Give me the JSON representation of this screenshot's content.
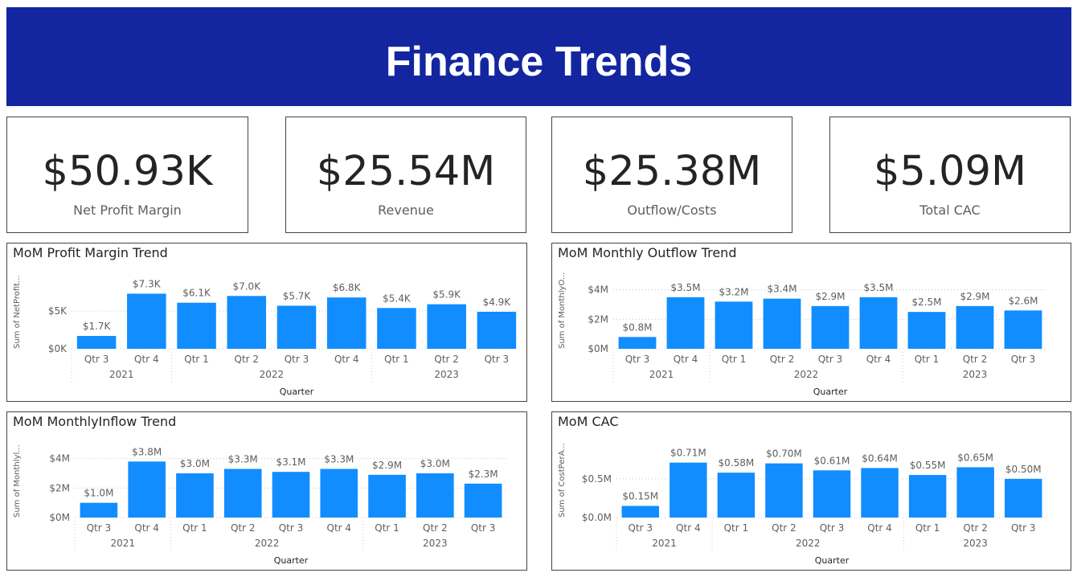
{
  "header": {
    "title": "Finance Trends"
  },
  "kpis": [
    {
      "value": "$50.93K",
      "label": "Net Profit Margin"
    },
    {
      "value": "$25.54M",
      "label": "Revenue"
    },
    {
      "value": "$25.38M",
      "label": "Outflow/Costs"
    },
    {
      "value": "$5.09M",
      "label": "Total CAC"
    }
  ],
  "colors": {
    "bar": "#118dff",
    "header": "#1326a0"
  },
  "chart_data": [
    {
      "type": "bar",
      "title": "MoM Profit Margin Trend",
      "ylabel": "Sum of NetProfit...",
      "xlabel": "Quarter",
      "categories": [
        "Qtr 3",
        "Qtr 4",
        "Qtr 1",
        "Qtr 2",
        "Qtr 3",
        "Qtr 4",
        "Qtr 1",
        "Qtr 2",
        "Qtr 3"
      ],
      "years": [
        {
          "label": "2021",
          "span": 2
        },
        {
          "label": "2022",
          "span": 4
        },
        {
          "label": "2023",
          "span": 3
        }
      ],
      "values": [
        1.7,
        7.3,
        6.1,
        7.0,
        5.7,
        6.8,
        5.4,
        5.9,
        4.9
      ],
      "data_labels": [
        "$1.7K",
        "$7.3K",
        "$6.1K",
        "$7.0K",
        "$5.7K",
        "$6.8K",
        "$5.4K",
        "$5.9K",
        "$4.9K"
      ],
      "yticks": [
        0,
        5
      ],
      "ytick_labels": [
        "$0K",
        "$5K"
      ],
      "ylim": [
        0,
        8.2
      ]
    },
    {
      "type": "bar",
      "title": "MoM Monthly Outflow Trend",
      "ylabel": "Sum of MonthlyO...",
      "xlabel": "Quarter",
      "categories": [
        "Qtr 3",
        "Qtr 4",
        "Qtr 1",
        "Qtr 2",
        "Qtr 3",
        "Qtr 4",
        "Qtr 1",
        "Qtr 2",
        "Qtr 3"
      ],
      "years": [
        {
          "label": "2021",
          "span": 2
        },
        {
          "label": "2022",
          "span": 4
        },
        {
          "label": "2023",
          "span": 3
        }
      ],
      "values": [
        0.8,
        3.5,
        3.2,
        3.4,
        2.9,
        3.5,
        2.5,
        2.9,
        2.6
      ],
      "data_labels": [
        "$0.8M",
        "$3.5M",
        "$3.2M",
        "$3.4M",
        "$2.9M",
        "$3.5M",
        "$2.5M",
        "$2.9M",
        "$2.6M"
      ],
      "yticks": [
        0,
        2,
        4
      ],
      "ytick_labels": [
        "$0M",
        "$2M",
        "$4M"
      ],
      "ylim": [
        0,
        4.2
      ]
    },
    {
      "type": "bar",
      "title": "MoM MonthlyInflow Trend",
      "ylabel": "Sum of Monthlyl...",
      "xlabel": "Quarter",
      "categories": [
        "Qtr 3",
        "Qtr 4",
        "Qtr 1",
        "Qtr 2",
        "Qtr 3",
        "Qtr 4",
        "Qtr 1",
        "Qtr 2",
        "Qtr 3"
      ],
      "years": [
        {
          "label": "2021",
          "span": 2
        },
        {
          "label": "2022",
          "span": 4
        },
        {
          "label": "2023",
          "span": 3
        }
      ],
      "values": [
        1.0,
        3.8,
        3.0,
        3.3,
        3.1,
        3.3,
        2.9,
        3.0,
        2.3
      ],
      "data_labels": [
        "$1.0M",
        "$3.8M",
        "$3.0M",
        "$3.3M",
        "$3.1M",
        "$3.3M",
        "$2.9M",
        "$3.0M",
        "$2.3M"
      ],
      "yticks": [
        0,
        2,
        4
      ],
      "ytick_labels": [
        "$0M",
        "$2M",
        "$4M"
      ],
      "ylim": [
        0,
        4.2
      ]
    },
    {
      "type": "bar",
      "title": "MoM CAC",
      "ylabel": "Sum of CostPerA...",
      "xlabel": "Quarter",
      "categories": [
        "Qtr 3",
        "Qtr 4",
        "Qtr 1",
        "Qtr 2",
        "Qtr 3",
        "Qtr 4",
        "Qtr 1",
        "Qtr 2",
        "Qtr 3"
      ],
      "years": [
        {
          "label": "2021",
          "span": 2
        },
        {
          "label": "2022",
          "span": 4
        },
        {
          "label": "2023",
          "span": 3
        }
      ],
      "values": [
        0.15,
        0.71,
        0.58,
        0.7,
        0.61,
        0.64,
        0.55,
        0.65,
        0.5
      ],
      "data_labels": [
        "$0.15M",
        "$0.71M",
        "$0.58M",
        "$0.70M",
        "$0.61M",
        "$0.64M",
        "$0.55M",
        "$0.65M",
        "$0.50M"
      ],
      "yticks": [
        0,
        0.5
      ],
      "ytick_labels": [
        "$0.0M",
        "$0.5M"
      ],
      "ylim": [
        0,
        0.8
      ]
    }
  ]
}
